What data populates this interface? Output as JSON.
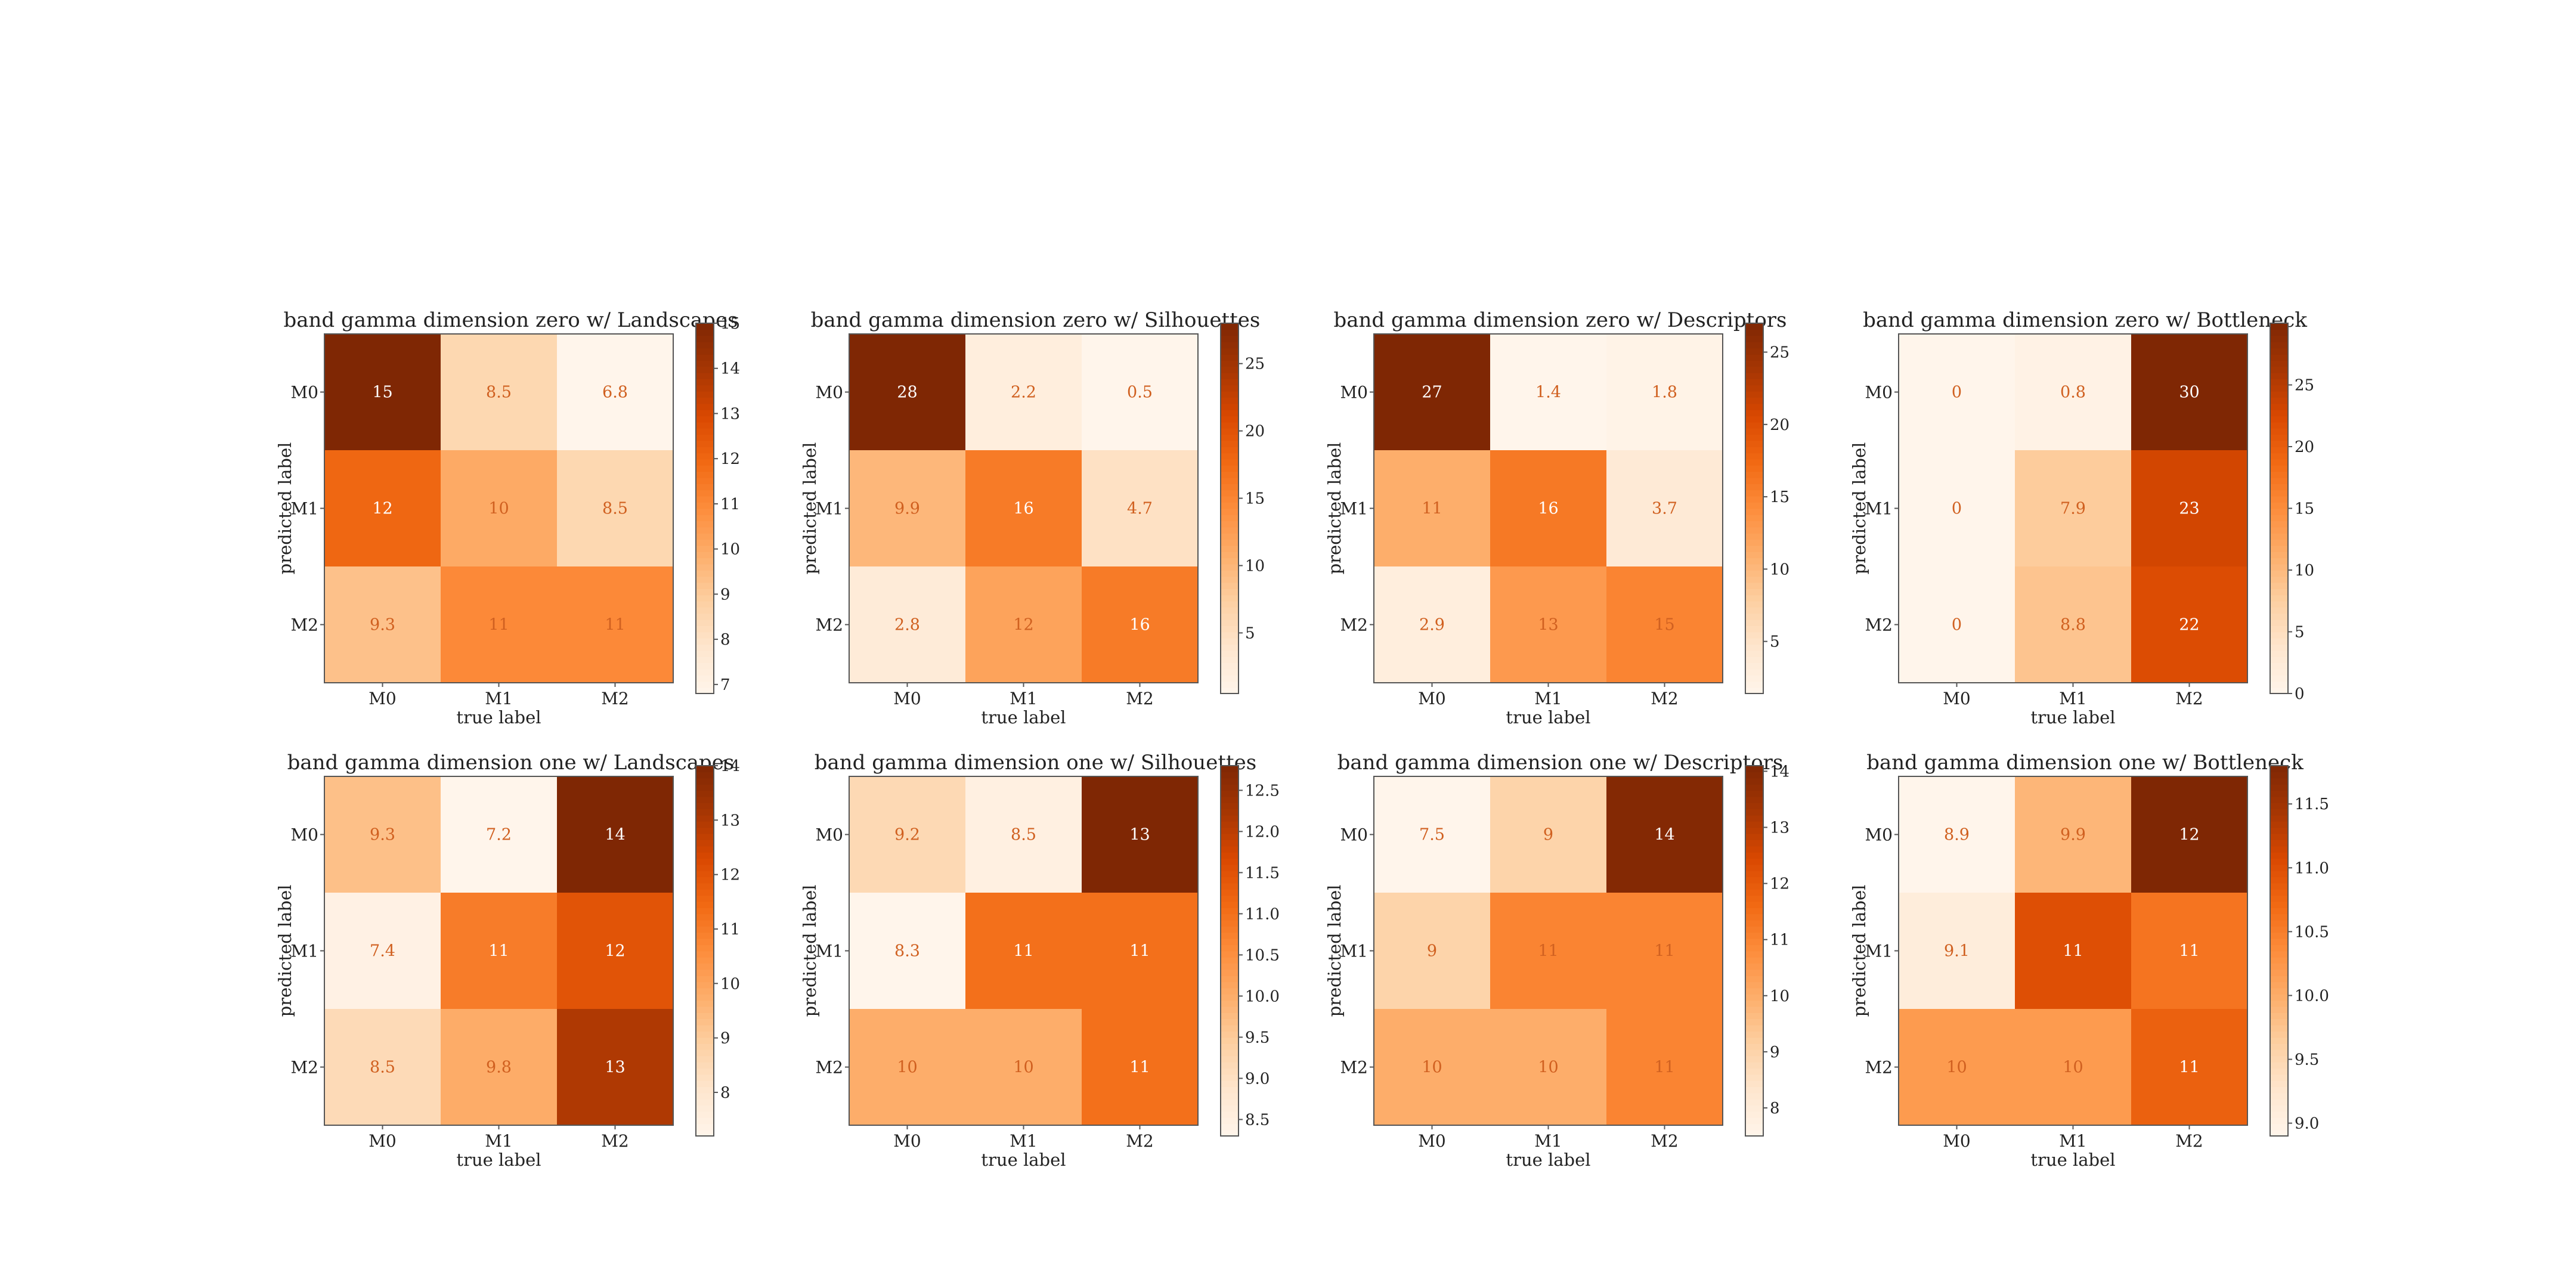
{
  "figure": {
    "colormap": {
      "name": "Oranges",
      "stops": [
        "#fff5eb",
        "#fee6ce",
        "#fdd0a2",
        "#fdae6b",
        "#fd8d3c",
        "#f16913",
        "#d94801",
        "#a63603",
        "#7f2704"
      ]
    },
    "text_light": "#ffffff",
    "text_dark": "#ffffff"
  },
  "chart_data": [
    {
      "type": "heatmap",
      "title": "band gamma dimension zero w/ Landscapes",
      "xlabel": "true label",
      "ylabel": "predicted label",
      "x_categories": [
        "M0",
        "M1",
        "M2"
      ],
      "y_categories": [
        "M0",
        "M1",
        "M2"
      ],
      "values": [
        [
          15,
          8.5,
          6.8
        ],
        [
          12,
          10,
          8.5
        ],
        [
          9.3,
          11,
          11
        ]
      ],
      "labels": [
        [
          "15",
          "8.5",
          "6.8"
        ],
        [
          "12",
          "10",
          "8.5"
        ],
        [
          "9.3",
          "11",
          "11"
        ]
      ],
      "vmin": 6.8,
      "vmax": 15,
      "colorbar_ticks": [
        7,
        8,
        9,
        10,
        11,
        12,
        13,
        14,
        15
      ],
      "colorbar_tick_labels": [
        "7",
        "8",
        "9",
        "10",
        "11",
        "12",
        "13",
        "14",
        "15"
      ]
    },
    {
      "type": "heatmap",
      "title": "band gamma dimension zero w/ Silhouettes",
      "xlabel": "true label",
      "ylabel": "predicted label",
      "x_categories": [
        "M0",
        "M1",
        "M2"
      ],
      "y_categories": [
        "M0",
        "M1",
        "M2"
      ],
      "values": [
        [
          28,
          2.2,
          0.5
        ],
        [
          9.9,
          16,
          4.7
        ],
        [
          2.8,
          12,
          16
        ]
      ],
      "labels": [
        [
          "28",
          "2.2",
          "0.5"
        ],
        [
          "9.9",
          "16",
          "4.7"
        ],
        [
          "2.8",
          "12",
          "16"
        ]
      ],
      "vmin": 0.5,
      "vmax": 28,
      "colorbar_ticks": [
        5,
        10,
        15,
        20,
        25
      ],
      "colorbar_tick_labels": [
        "5",
        "10",
        "15",
        "20",
        "25"
      ]
    },
    {
      "type": "heatmap",
      "title": "band gamma dimension zero w/ Descriptors",
      "xlabel": "true label",
      "ylabel": "predicted label",
      "x_categories": [
        "M0",
        "M1",
        "M2"
      ],
      "y_categories": [
        "M0",
        "M1",
        "M2"
      ],
      "values": [
        [
          27,
          1.4,
          1.8
        ],
        [
          11,
          16,
          3.7
        ],
        [
          2.9,
          13,
          15
        ]
      ],
      "labels": [
        [
          "27",
          "1.4",
          "1.8"
        ],
        [
          "11",
          "16",
          "3.7"
        ],
        [
          "2.9",
          "13",
          "15"
        ]
      ],
      "vmin": 1.4,
      "vmax": 27,
      "colorbar_ticks": [
        5,
        10,
        15,
        20,
        25
      ],
      "colorbar_tick_labels": [
        "5",
        "10",
        "15",
        "20",
        "25"
      ]
    },
    {
      "type": "heatmap",
      "title": "band gamma dimension zero w/ Bottleneck",
      "xlabel": "true label",
      "ylabel": "predicted label",
      "x_categories": [
        "M0",
        "M1",
        "M2"
      ],
      "y_categories": [
        "M0",
        "M1",
        "M2"
      ],
      "values": [
        [
          0,
          0.8,
          30
        ],
        [
          0,
          7.9,
          23
        ],
        [
          0,
          8.8,
          22
        ]
      ],
      "labels": [
        [
          "0",
          "0.8",
          "30"
        ],
        [
          "0",
          "7.9",
          "23"
        ],
        [
          "0",
          "8.8",
          "22"
        ]
      ],
      "vmin": 0,
      "vmax": 30,
      "colorbar_ticks": [
        0,
        5,
        10,
        15,
        20,
        25
      ],
      "colorbar_tick_labels": [
        "0",
        "5",
        "10",
        "15",
        "20",
        "25"
      ]
    },
    {
      "type": "heatmap",
      "title": "band gamma dimension one w/ Landscapes",
      "xlabel": "true label",
      "ylabel": "predicted label",
      "x_categories": [
        "M0",
        "M1",
        "M2"
      ],
      "y_categories": [
        "M0",
        "M1",
        "M2"
      ],
      "values": [
        [
          9.3,
          7.2,
          14
        ],
        [
          7.4,
          11,
          12
        ],
        [
          8.5,
          9.8,
          13
        ]
      ],
      "labels": [
        [
          "9.3",
          "7.2",
          "14"
        ],
        [
          "7.4",
          "11",
          "12"
        ],
        [
          "8.5",
          "9.8",
          "13"
        ]
      ],
      "vmin": 7.2,
      "vmax": 14,
      "colorbar_ticks": [
        8,
        9,
        10,
        11,
        12,
        13,
        14
      ],
      "colorbar_tick_labels": [
        "8",
        "9",
        "10",
        "11",
        "12",
        "13",
        "14"
      ]
    },
    {
      "type": "heatmap",
      "title": "band gamma dimension one w/ Silhouettes",
      "xlabel": "true label",
      "ylabel": "predicted label",
      "x_categories": [
        "M0",
        "M1",
        "M2"
      ],
      "y_categories": [
        "M0",
        "M1",
        "M2"
      ],
      "values": [
        [
          9.2,
          8.5,
          13
        ],
        [
          8.3,
          11,
          11
        ],
        [
          10,
          10,
          11
        ]
      ],
      "labels": [
        [
          "9.2",
          "8.5",
          "13"
        ],
        [
          "8.3",
          "11",
          "11"
        ],
        [
          "10",
          "10",
          "11"
        ]
      ],
      "vmin": 8.3,
      "vmax": 12.8,
      "colorbar_ticks": [
        8.5,
        9.0,
        9.5,
        10.0,
        10.5,
        11.0,
        11.5,
        12.0,
        12.5
      ],
      "colorbar_tick_labels": [
        "8.5",
        "9.0",
        "9.5",
        "10.0",
        "10.5",
        "11.0",
        "11.5",
        "12.0",
        "12.5"
      ]
    },
    {
      "type": "heatmap",
      "title": "band gamma dimension one w/ Descriptors",
      "xlabel": "true label",
      "ylabel": "predicted label",
      "x_categories": [
        "M0",
        "M1",
        "M2"
      ],
      "y_categories": [
        "M0",
        "M1",
        "M2"
      ],
      "values": [
        [
          7.5,
          9,
          14
        ],
        [
          9,
          11,
          11
        ],
        [
          10,
          10,
          11
        ]
      ],
      "labels": [
        [
          "7.5",
          "9",
          "14"
        ],
        [
          "9",
          "11",
          "11"
        ],
        [
          "10",
          "10",
          "11"
        ]
      ],
      "vmin": 7.5,
      "vmax": 14.1,
      "colorbar_ticks": [
        8,
        9,
        10,
        11,
        12,
        13,
        14
      ],
      "colorbar_tick_labels": [
        "8",
        "9",
        "10",
        "11",
        "12",
        "13",
        "14"
      ]
    },
    {
      "type": "heatmap",
      "title": "band gamma dimension one w/ Bottleneck",
      "xlabel": "true label",
      "ylabel": "predicted label",
      "x_categories": [
        "M0",
        "M1",
        "M2"
      ],
      "y_categories": [
        "M0",
        "M1",
        "M2"
      ],
      "values": [
        [
          8.9,
          9.9,
          11.8
        ],
        [
          9.1,
          11,
          10.6
        ],
        [
          10.2,
          10.2,
          10.8
        ]
      ],
      "labels": [
        [
          "8.9",
          "9.9",
          "12"
        ],
        [
          "9.1",
          "11",
          "11"
        ],
        [
          "10",
          "10",
          "11"
        ]
      ],
      "vmin": 8.9,
      "vmax": 11.8,
      "colorbar_ticks": [
        9.0,
        9.5,
        10.0,
        10.5,
        11.0,
        11.5
      ],
      "colorbar_tick_labels": [
        "9.0",
        "9.5",
        "10.0",
        "10.5",
        "11.0",
        "11.5"
      ]
    }
  ]
}
